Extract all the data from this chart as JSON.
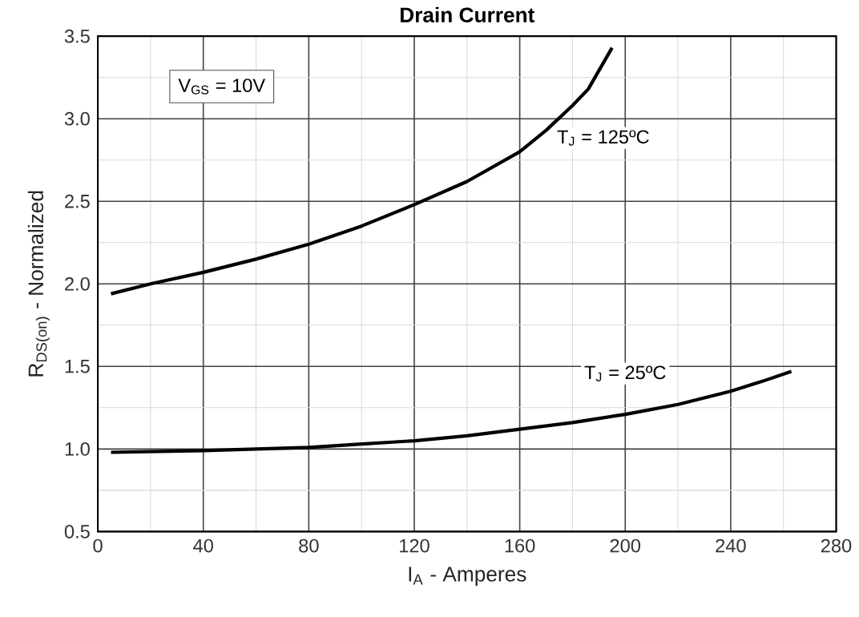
{
  "chart_data": {
    "type": "line",
    "title": "Drain Current",
    "xlabel": "I$_{A}$ - Amperes",
    "ylabel": "R$_{DS(on)}$ - Normalized",
    "x": [
      5,
      20,
      40,
      60,
      80,
      100,
      120,
      140,
      160,
      170,
      180,
      186,
      195
    ],
    "series": [
      {
        "name": "T$_{J}$ = 125ºC",
        "color": "#000000",
        "values": [
          1.94,
          2.0,
          2.07,
          2.15,
          2.24,
          2.35,
          2.48,
          2.62,
          2.8,
          2.93,
          3.08,
          3.18,
          3.43
        ]
      },
      {
        "name": "T$_{J}$ = 25ºC",
        "color": "#000000",
        "x": [
          5,
          40,
          80,
          100,
          120,
          140,
          160,
          180,
          200,
          220,
          240,
          252,
          263
        ],
        "values": [
          0.98,
          0.99,
          1.01,
          1.03,
          1.05,
          1.08,
          1.12,
          1.16,
          1.21,
          1.27,
          1.35,
          1.41,
          1.47
        ]
      }
    ],
    "annotations": [
      "V$_{GS}$ = 10V"
    ],
    "xlim": [
      0,
      280
    ],
    "ylim": [
      0.5,
      3.5
    ],
    "xticks": [
      0,
      40,
      80,
      120,
      160,
      200,
      240,
      280
    ],
    "yticks": [
      0.5,
      {
        "value": 1,
        "label": "1.0"
      },
      1.5,
      {
        "value": 2,
        "label": "2.0"
      },
      2.5,
      {
        "value": 3,
        "label": "3.0"
      },
      3.5
    ],
    "grid": true,
    "legend": false,
    "marker": "none",
    "line_style": "solid"
  }
}
